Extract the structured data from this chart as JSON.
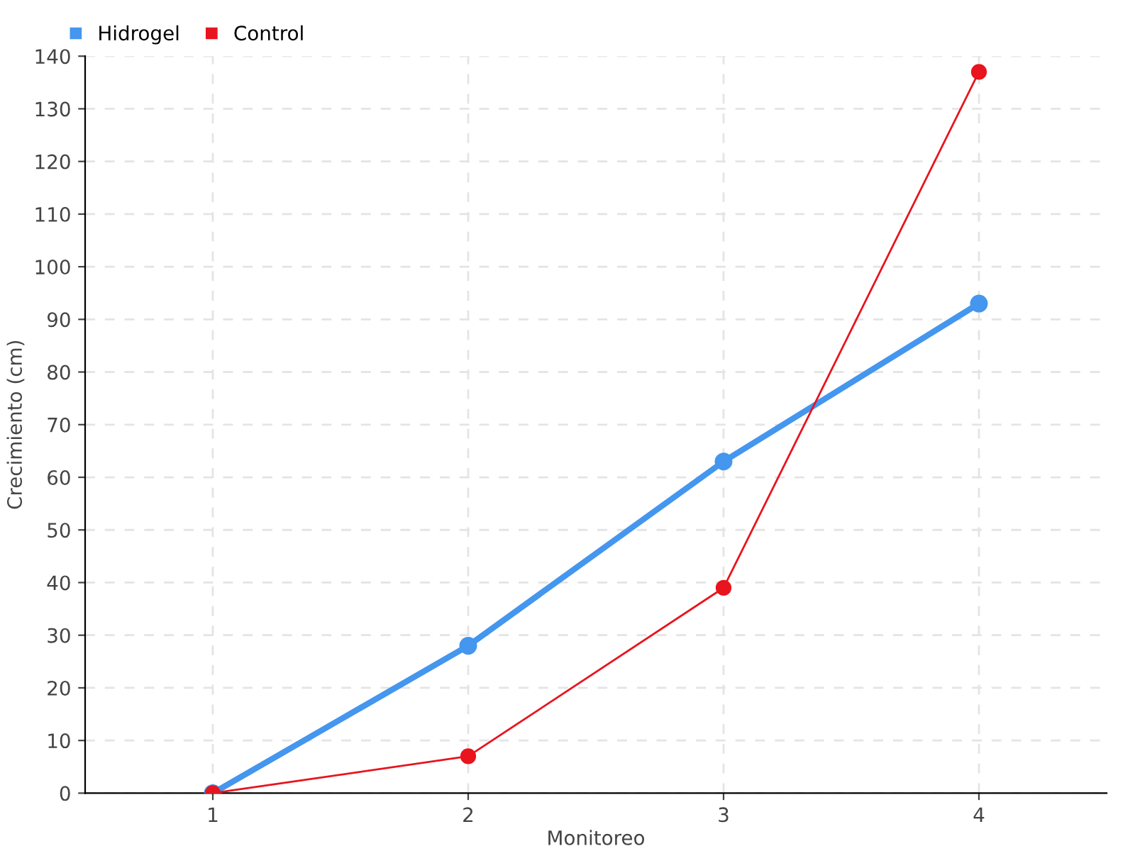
{
  "chart_data": {
    "type": "line",
    "xlabel": "Monitoreo",
    "ylabel": "Crecimiento (cm)",
    "categories": [
      "1",
      "2",
      "3",
      "4"
    ],
    "series": [
      {
        "name": "Hidrogel",
        "color": "#4496ee",
        "values": [
          0,
          28,
          63,
          93
        ]
      },
      {
        "name": "Control",
        "color": "#e8141e",
        "values": [
          0,
          7,
          39,
          137
        ]
      }
    ],
    "ylim": [
      0,
      140
    ],
    "yticks": [
      0,
      10,
      20,
      30,
      40,
      50,
      60,
      70,
      80,
      90,
      100,
      110,
      120,
      130,
      140
    ],
    "grid": true,
    "legend": "top left",
    "marker": "circle",
    "line_style": "solid"
  }
}
